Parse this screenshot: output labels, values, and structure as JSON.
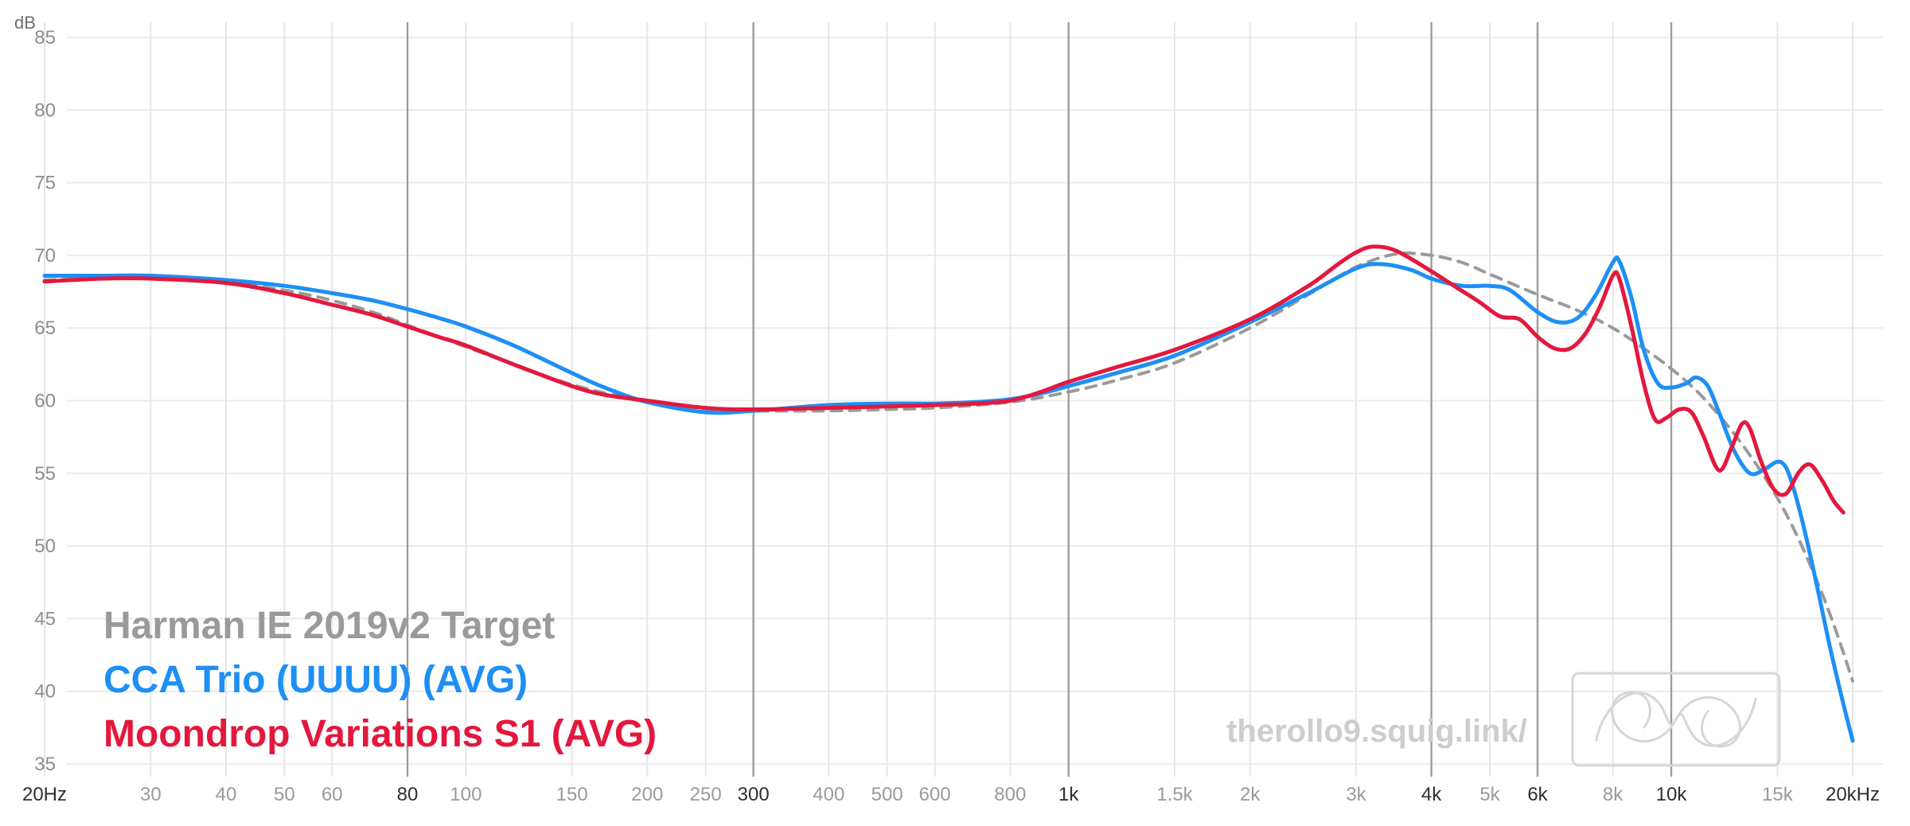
{
  "watermark": "therollo9.squig.link/",
  "axis": {
    "y_unit": "dB",
    "y_min": 35,
    "y_max": 85,
    "y_ticks": [
      85,
      80,
      75,
      70,
      65,
      60,
      55,
      50,
      45,
      40,
      35
    ],
    "x_ticks": [
      {
        "label": "20Hz",
        "f": 20,
        "emph": false,
        "bold": true
      },
      {
        "label": "30",
        "f": 30,
        "emph": false,
        "bold": false
      },
      {
        "label": "40",
        "f": 40,
        "emph": false,
        "bold": false
      },
      {
        "label": "50",
        "f": 50,
        "emph": false,
        "bold": false
      },
      {
        "label": "60",
        "f": 60,
        "emph": false,
        "bold": false
      },
      {
        "label": "80",
        "f": 80,
        "emph": true,
        "bold": true
      },
      {
        "label": "100",
        "f": 100,
        "emph": false,
        "bold": false
      },
      {
        "label": "150",
        "f": 150,
        "emph": false,
        "bold": false
      },
      {
        "label": "200",
        "f": 200,
        "emph": false,
        "bold": false
      },
      {
        "label": "250",
        "f": 250,
        "emph": false,
        "bold": false
      },
      {
        "label": "300",
        "f": 300,
        "emph": true,
        "bold": true
      },
      {
        "label": "400",
        "f": 400,
        "emph": false,
        "bold": false
      },
      {
        "label": "500",
        "f": 500,
        "emph": false,
        "bold": false
      },
      {
        "label": "600",
        "f": 600,
        "emph": false,
        "bold": false
      },
      {
        "label": "800",
        "f": 800,
        "emph": false,
        "bold": false
      },
      {
        "label": "1k",
        "f": 1000,
        "emph": true,
        "bold": true
      },
      {
        "label": "1.5k",
        "f": 1500,
        "emph": false,
        "bold": false
      },
      {
        "label": "2k",
        "f": 2000,
        "emph": false,
        "bold": false
      },
      {
        "label": "3k",
        "f": 3000,
        "emph": false,
        "bold": false
      },
      {
        "label": "4k",
        "f": 4000,
        "emph": true,
        "bold": true
      },
      {
        "label": "5k",
        "f": 5000,
        "emph": false,
        "bold": false
      },
      {
        "label": "6k",
        "f": 6000,
        "emph": true,
        "bold": true
      },
      {
        "label": "8k",
        "f": 8000,
        "emph": false,
        "bold": false
      },
      {
        "label": "10k",
        "f": 10000,
        "emph": true,
        "bold": true
      },
      {
        "label": "15k",
        "f": 15000,
        "emph": false,
        "bold": false
      },
      {
        "label": "20kHz",
        "f": 20000,
        "emph": false,
        "bold": true
      }
    ]
  },
  "chart_data": {
    "type": "line",
    "xscale": "log",
    "x_range": [
      20,
      20000
    ],
    "ylim": [
      35,
      85
    ],
    "grid": true,
    "legend_position": "bottom-left",
    "series": [
      {
        "name": "Harman IE 2019v2 Target",
        "color": "#9a9a9a",
        "dashed": true,
        "points": [
          [
            20,
            68.3
          ],
          [
            25,
            68.4
          ],
          [
            30,
            68.4
          ],
          [
            40,
            68.1
          ],
          [
            50,
            67.6
          ],
          [
            60,
            66.9
          ],
          [
            70,
            66.1
          ],
          [
            80,
            65.2
          ],
          [
            90,
            64.4
          ],
          [
            100,
            63.7
          ],
          [
            120,
            62.5
          ],
          [
            150,
            61.1
          ],
          [
            200,
            59.9
          ],
          [
            250,
            59.4
          ],
          [
            300,
            59.3
          ],
          [
            400,
            59.3
          ],
          [
            500,
            59.4
          ],
          [
            600,
            59.5
          ],
          [
            800,
            59.9
          ],
          [
            1000,
            60.6
          ],
          [
            1200,
            61.4
          ],
          [
            1500,
            62.6
          ],
          [
            2000,
            65.0
          ],
          [
            2500,
            67.3
          ],
          [
            3000,
            69.2
          ],
          [
            3500,
            70.1
          ],
          [
            4000,
            70.0
          ],
          [
            4500,
            69.5
          ],
          [
            5000,
            68.7
          ],
          [
            6000,
            67.3
          ],
          [
            7000,
            66.2
          ],
          [
            8000,
            65.0
          ],
          [
            9000,
            63.6
          ],
          [
            10000,
            62.2
          ],
          [
            11000,
            60.7
          ],
          [
            12000,
            59.0
          ],
          [
            13000,
            57.2
          ],
          [
            14000,
            55.3
          ],
          [
            15000,
            53.3
          ],
          [
            16000,
            51.1
          ],
          [
            17000,
            48.7
          ],
          [
            18000,
            46.2
          ],
          [
            19000,
            43.5
          ],
          [
            20000,
            40.7
          ]
        ]
      },
      {
        "name": "CCA Trio (UUUU) (AVG)",
        "color": "#1e8ff5",
        "dashed": false,
        "points": [
          [
            20,
            68.6
          ],
          [
            25,
            68.6
          ],
          [
            30,
            68.6
          ],
          [
            40,
            68.3
          ],
          [
            50,
            67.9
          ],
          [
            60,
            67.4
          ],
          [
            70,
            66.9
          ],
          [
            80,
            66.3
          ],
          [
            90,
            65.7
          ],
          [
            100,
            65.1
          ],
          [
            120,
            63.8
          ],
          [
            150,
            61.9
          ],
          [
            170,
            60.9
          ],
          [
            200,
            59.9
          ],
          [
            250,
            59.2
          ],
          [
            300,
            59.3
          ],
          [
            400,
            59.7
          ],
          [
            500,
            59.8
          ],
          [
            600,
            59.8
          ],
          [
            700,
            59.9
          ],
          [
            800,
            60.1
          ],
          [
            900,
            60.5
          ],
          [
            1000,
            61.0
          ],
          [
            1200,
            61.9
          ],
          [
            1500,
            63.1
          ],
          [
            2000,
            65.4
          ],
          [
            2500,
            67.4
          ],
          [
            3000,
            69.1
          ],
          [
            3300,
            69.4
          ],
          [
            3700,
            69.0
          ],
          [
            4000,
            68.4
          ],
          [
            4500,
            67.9
          ],
          [
            5000,
            67.9
          ],
          [
            5400,
            67.6
          ],
          [
            6000,
            66.1
          ],
          [
            6500,
            65.4
          ],
          [
            7000,
            65.7
          ],
          [
            7500,
            67.3
          ],
          [
            8000,
            69.5
          ],
          [
            8200,
            69.6
          ],
          [
            8600,
            67.0
          ],
          [
            9000,
            63.5
          ],
          [
            9500,
            61.2
          ],
          [
            10000,
            60.9
          ],
          [
            10600,
            61.2
          ],
          [
            11000,
            61.6
          ],
          [
            11500,
            61.0
          ],
          [
            12000,
            59.2
          ],
          [
            12700,
            56.6
          ],
          [
            13500,
            55.0
          ],
          [
            14300,
            55.3
          ],
          [
            15000,
            55.8
          ],
          [
            15500,
            55.4
          ],
          [
            16000,
            53.8
          ],
          [
            16700,
            50.8
          ],
          [
            17500,
            47.0
          ],
          [
            18300,
            43.2
          ],
          [
            19200,
            39.5
          ],
          [
            20000,
            36.6
          ]
        ]
      },
      {
        "name": "Moondrop Variations S1 (AVG)",
        "color": "#e3183d",
        "dashed": false,
        "points": [
          [
            20,
            68.2
          ],
          [
            25,
            68.4
          ],
          [
            30,
            68.4
          ],
          [
            40,
            68.1
          ],
          [
            50,
            67.4
          ],
          [
            60,
            66.6
          ],
          [
            70,
            65.9
          ],
          [
            80,
            65.1
          ],
          [
            90,
            64.4
          ],
          [
            100,
            63.8
          ],
          [
            120,
            62.5
          ],
          [
            150,
            61.0
          ],
          [
            170,
            60.4
          ],
          [
            200,
            60.0
          ],
          [
            250,
            59.5
          ],
          [
            300,
            59.4
          ],
          [
            400,
            59.5
          ],
          [
            500,
            59.6
          ],
          [
            600,
            59.7
          ],
          [
            700,
            59.8
          ],
          [
            800,
            60.0
          ],
          [
            900,
            60.6
          ],
          [
            1000,
            61.3
          ],
          [
            1200,
            62.3
          ],
          [
            1500,
            63.5
          ],
          [
            2000,
            65.6
          ],
          [
            2500,
            67.9
          ],
          [
            2800,
            69.4
          ],
          [
            3000,
            70.2
          ],
          [
            3200,
            70.6
          ],
          [
            3500,
            70.3
          ],
          [
            4000,
            68.9
          ],
          [
            4400,
            67.8
          ],
          [
            4800,
            66.8
          ],
          [
            5200,
            65.8
          ],
          [
            5600,
            65.6
          ],
          [
            6000,
            64.4
          ],
          [
            6400,
            63.6
          ],
          [
            6800,
            63.6
          ],
          [
            7200,
            64.6
          ],
          [
            7600,
            66.4
          ],
          [
            8000,
            68.6
          ],
          [
            8200,
            68.4
          ],
          [
            8600,
            65.0
          ],
          [
            9000,
            61.2
          ],
          [
            9400,
            58.7
          ],
          [
            9800,
            58.8
          ],
          [
            10300,
            59.4
          ],
          [
            10800,
            59.2
          ],
          [
            11300,
            57.6
          ],
          [
            12000,
            55.2
          ],
          [
            12600,
            56.8
          ],
          [
            13100,
            58.4
          ],
          [
            13500,
            58.1
          ],
          [
            14100,
            55.8
          ],
          [
            14800,
            53.9
          ],
          [
            15500,
            53.6
          ],
          [
            16300,
            55.1
          ],
          [
            17000,
            55.6
          ],
          [
            17800,
            54.5
          ],
          [
            18600,
            53.1
          ],
          [
            19300,
            52.3
          ]
        ]
      }
    ]
  }
}
